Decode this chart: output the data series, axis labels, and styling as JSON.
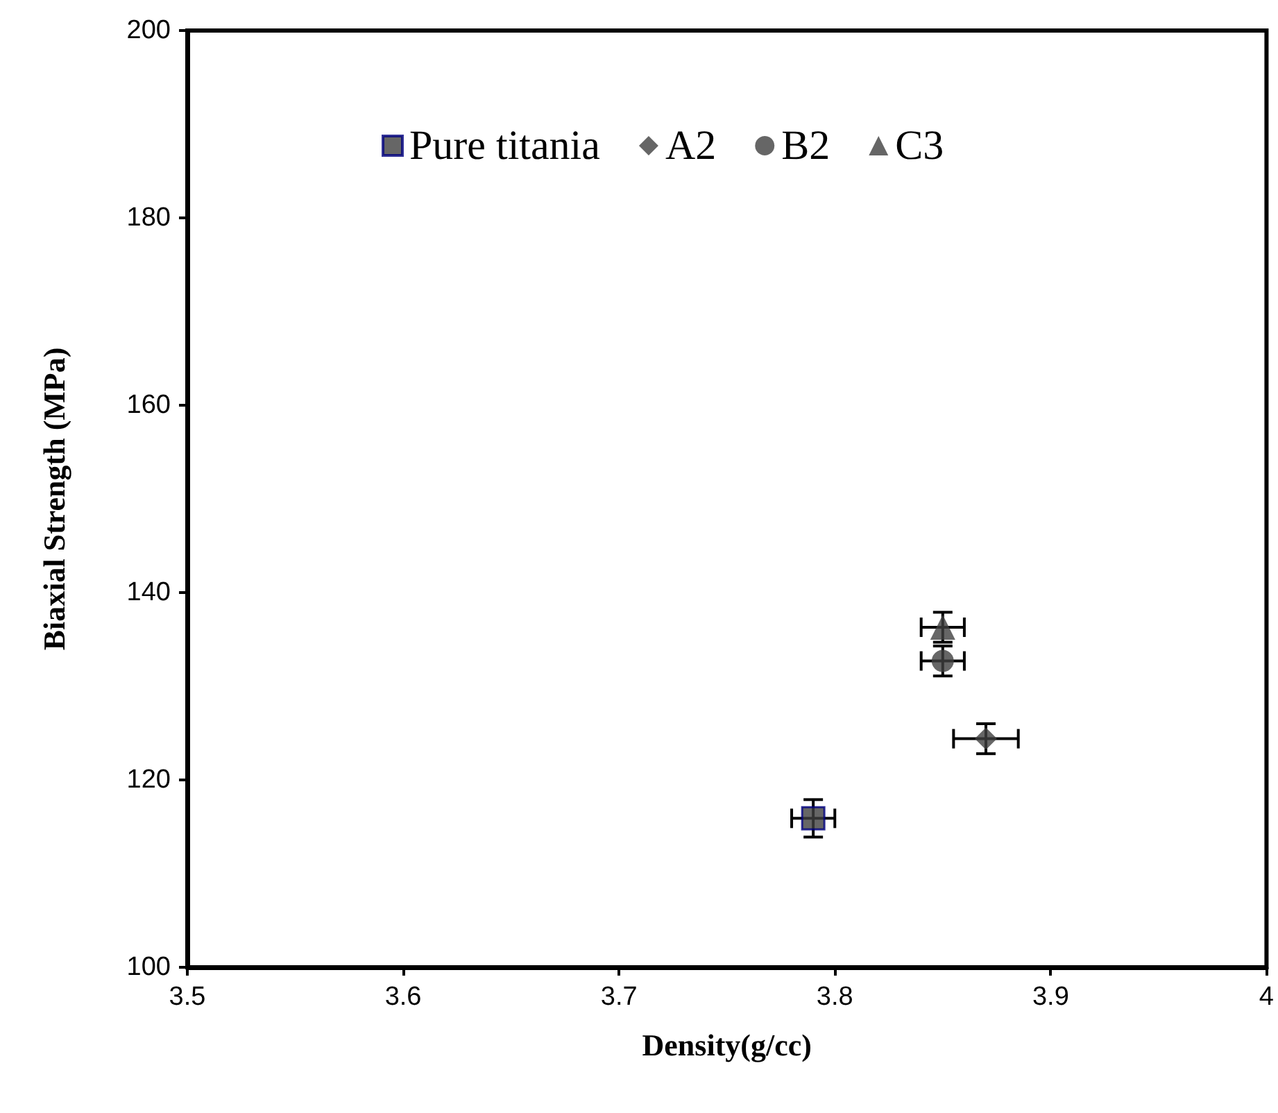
{
  "chart_data": {
    "type": "scatter",
    "xlabel": "Density(g/cc)",
    "ylabel": "Biaxial Strength (MPa)",
    "xlim": [
      3.5,
      4
    ],
    "xticks": [
      3.5,
      3.6,
      3.7,
      3.8,
      3.9,
      4
    ],
    "ylim": [
      100,
      200
    ],
    "yticks": [
      100,
      120,
      140,
      160,
      180,
      200
    ],
    "legend": "top",
    "grid": false,
    "series": [
      {
        "name": "Pure titania",
        "color": "#404040",
        "marker": "square",
        "x": [
          3.79
        ],
        "values": [
          115.9
        ],
        "errors": [
          2
        ],
        "xerrors": [
          0.01
        ]
      },
      {
        "name": "A2",
        "color": "#404040",
        "marker": "diamond",
        "x": [
          3.87
        ],
        "values": [
          124.4
        ],
        "errors": [
          1.6
        ],
        "xerrors": [
          0.015
        ]
      },
      {
        "name": "B2",
        "color": "#404040",
        "marker": "circle",
        "x": [
          3.85
        ],
        "values": [
          132.7
        ],
        "errors": [
          1.6
        ],
        "xerrors": [
          0.01
        ]
      },
      {
        "name": "C3",
        "color": "#404040",
        "marker": "triangle",
        "x": [
          3.85
        ],
        "values": [
          136.3
        ],
        "errors": [
          1.6
        ],
        "xerrors": [
          0.01
        ]
      }
    ]
  }
}
